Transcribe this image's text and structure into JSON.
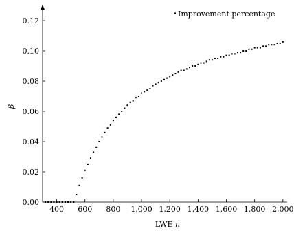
{
  "chart_data": {
    "type": "scatter",
    "title": "",
    "xlabel": "LWE",
    "xlabel_var": "n",
    "ylabel": "β",
    "xlim": [
      300,
      2030
    ],
    "ylim": [
      0,
      0.13
    ],
    "x_ticks": [
      400,
      600,
      800,
      1000,
      1200,
      1400,
      1600,
      1800,
      2000
    ],
    "x_tick_labels": [
      "400",
      "600",
      "800",
      "1,000",
      "1,200",
      "1,400",
      "1,600",
      "1,800",
      "2,000"
    ],
    "y_ticks": [
      0,
      0.02,
      0.04,
      0.06,
      0.08,
      0.1,
      0.12
    ],
    "y_tick_labels": [
      "0.00",
      "0.02",
      "0.04",
      "0.06",
      "0.08",
      "0.10",
      "0.12"
    ],
    "grid": false,
    "legend_position": "top-right",
    "point_color": "#000000",
    "series": [
      {
        "name": "Improvement percentage",
        "x": [
          320,
          340,
          360,
          380,
          400,
          420,
          440,
          460,
          480,
          500,
          520,
          540,
          560,
          580,
          600,
          620,
          640,
          660,
          680,
          700,
          720,
          740,
          760,
          780,
          800,
          820,
          840,
          860,
          880,
          900,
          920,
          940,
          960,
          980,
          1000,
          1020,
          1040,
          1060,
          1080,
          1100,
          1120,
          1140,
          1160,
          1180,
          1200,
          1220,
          1240,
          1260,
          1280,
          1300,
          1320,
          1340,
          1360,
          1380,
          1400,
          1420,
          1440,
          1460,
          1480,
          1500,
          1520,
          1540,
          1560,
          1580,
          1600,
          1620,
          1640,
          1660,
          1680,
          1700,
          1720,
          1740,
          1760,
          1780,
          1800,
          1820,
          1840,
          1860,
          1880,
          1900,
          1920,
          1940,
          1960,
          1980,
          2000
        ],
        "y": [
          0,
          0,
          0,
          0,
          0,
          0,
          0,
          0,
          0,
          0,
          0,
          0.005,
          0.011,
          0.016,
          0.021,
          0.025,
          0.029,
          0.033,
          0.036,
          0.04,
          0.043,
          0.046,
          0.049,
          0.051,
          0.054,
          0.056,
          0.058,
          0.06,
          0.062,
          0.064,
          0.066,
          0.067,
          0.069,
          0.07,
          0.072,
          0.073,
          0.074,
          0.075,
          0.077,
          0.078,
          0.079,
          0.08,
          0.081,
          0.082,
          0.083,
          0.084,
          0.085,
          0.086,
          0.087,
          0.087,
          0.088,
          0.089,
          0.09,
          0.09,
          0.091,
          0.092,
          0.092,
          0.093,
          0.094,
          0.094,
          0.095,
          0.095,
          0.096,
          0.096,
          0.097,
          0.097,
          0.098,
          0.098,
          0.099,
          0.099,
          0.1,
          0.1,
          0.101,
          0.101,
          0.102,
          0.102,
          0.102,
          0.103,
          0.103,
          0.104,
          0.104,
          0.104,
          0.105,
          0.105,
          0.106
        ]
      }
    ]
  }
}
